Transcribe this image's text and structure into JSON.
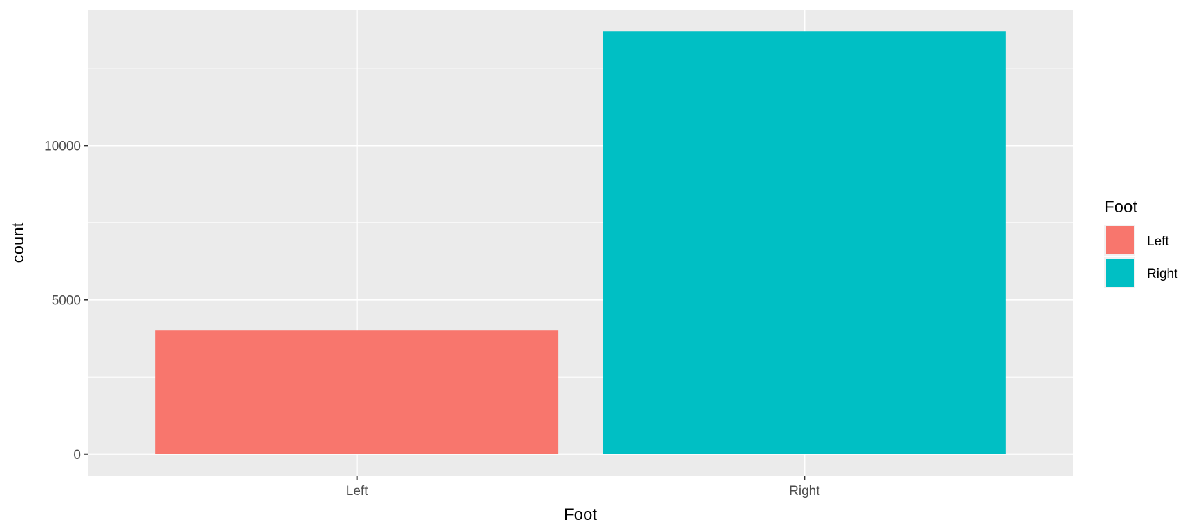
{
  "chart_data": {
    "type": "bar",
    "categories": [
      "Left",
      "Right"
    ],
    "values": [
      4000,
      13700
    ],
    "colors": [
      "#F8766D",
      "#00BFC4"
    ],
    "xlabel": "Foot",
    "ylabel": "count",
    "ylim": [
      -700,
      14400
    ],
    "yticks": [
      0,
      5000,
      10000
    ],
    "ytick_labels": [
      "0",
      "5000",
      "10000"
    ],
    "grid": true,
    "panel_background": "#EBEBEB",
    "legend": {
      "title": "Foot",
      "position": "right",
      "items": [
        {
          "label": "Left",
          "color": "#F8766D"
        },
        {
          "label": "Right",
          "color": "#00BFC4"
        }
      ]
    }
  }
}
